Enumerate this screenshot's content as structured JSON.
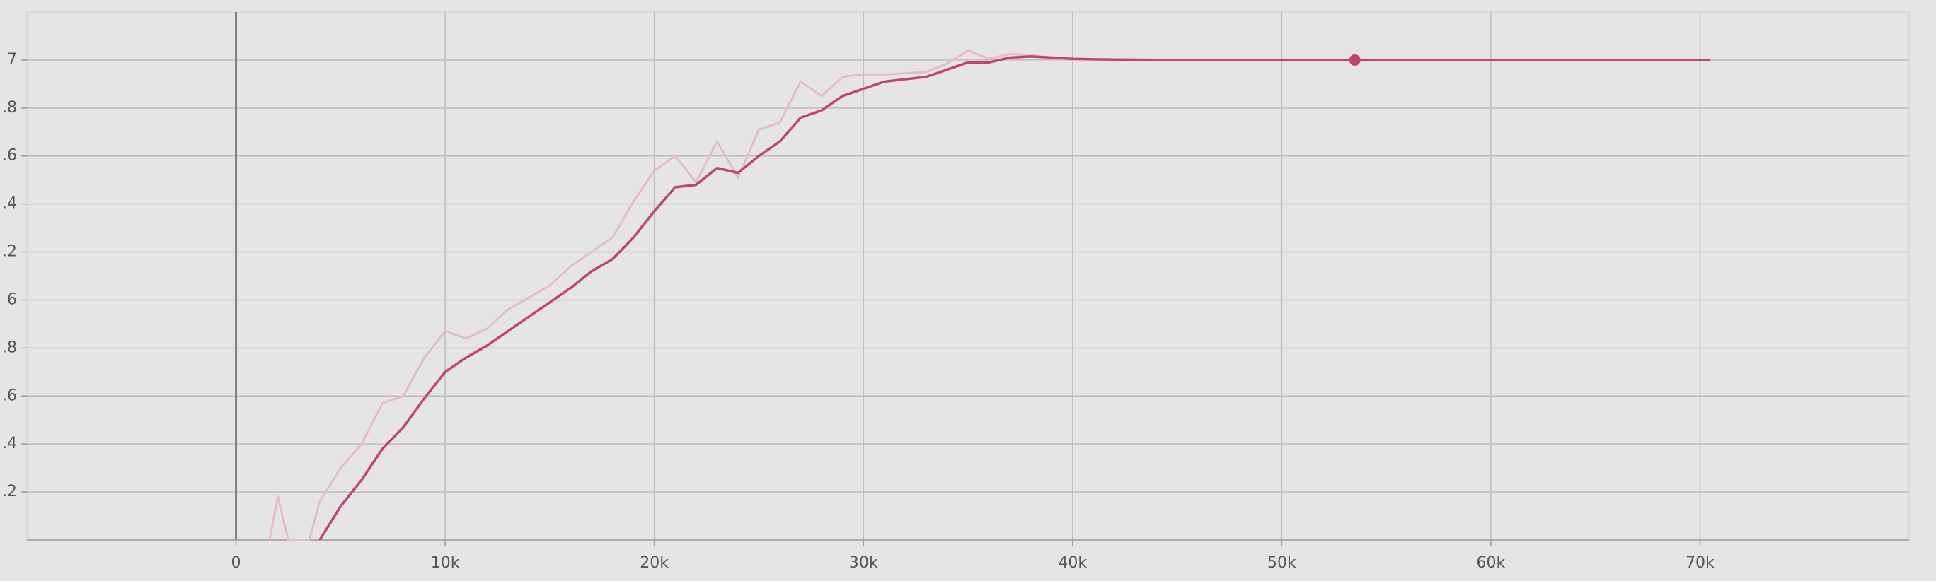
{
  "chart_data": {
    "type": "line",
    "xlim": [
      -10000,
      80000
    ],
    "ylim": [
      5,
      7.2
    ],
    "xticks": [
      0,
      {
        "value": 10000,
        "label": "10k"
      },
      {
        "value": 20000,
        "label": "20k"
      },
      {
        "value": 30000,
        "label": "30k"
      },
      {
        "value": 40000,
        "label": "40k"
      },
      {
        "value": 50000,
        "label": "50k"
      },
      {
        "value": 60000,
        "label": "60k"
      },
      {
        "value": 70000,
        "label": "70k"
      }
    ],
    "yticks": [
      {
        "value": 5.2,
        "label": ".2"
      },
      {
        "value": 5.4,
        "label": ".4"
      },
      {
        "value": 5.6,
        "label": ".6"
      },
      {
        "value": 5.8,
        "label": ".8"
      },
      6,
      {
        "value": 6.2,
        "label": ".2"
      },
      {
        "value": 6.4,
        "label": ".4"
      },
      {
        "value": 6.6,
        "label": ".6"
      },
      {
        "value": 6.8,
        "label": ".8"
      },
      7
    ],
    "grid": true,
    "series": [
      {
        "color": "#e2bccb",
        "x": [
          1600,
          2000,
          2500,
          3500,
          4000,
          5000,
          6000,
          7000,
          8000,
          9000,
          10000,
          11000,
          12000,
          13000,
          14000,
          15000,
          16000,
          17000,
          18000,
          19000,
          20000,
          21000,
          22000,
          23000,
          24000,
          25000,
          26000,
          27000,
          28000,
          29000,
          30000,
          31000,
          32000,
          33000,
          34000,
          35000,
          36000,
          37000,
          38000,
          39000,
          40000
        ],
        "values": [
          5.0,
          5.18,
          5.0,
          5.0,
          5.16,
          5.3,
          5.4,
          5.57,
          5.6,
          5.76,
          5.87,
          5.84,
          5.88,
          5.96,
          6.01,
          6.06,
          6.14,
          6.2,
          6.26,
          6.41,
          6.54,
          6.6,
          6.49,
          6.66,
          6.51,
          6.71,
          6.74,
          6.91,
          6.85,
          6.93,
          6.94,
          6.94,
          6.945,
          6.95,
          6.985,
          7.04,
          7.005,
          7.025,
          7.02,
          7.01,
          7.0
        ]
      },
      {
        "color": "#c2446e",
        "x": [
          4000,
          5000,
          6000,
          7000,
          8000,
          9000,
          10000,
          11000,
          12000,
          13000,
          14000,
          15000,
          16000,
          17000,
          18000,
          19000,
          20000,
          21000,
          22000,
          23000,
          24000,
          25000,
          26000,
          27000,
          28000,
          29000,
          30000,
          31000,
          32000,
          33000,
          34000,
          35000,
          36000,
          37000,
          38000,
          39000,
          40000,
          41000,
          42000,
          45000,
          50000,
          55000,
          60000,
          65000,
          70000,
          70500
        ],
        "values": [
          5.0,
          5.14,
          5.25,
          5.38,
          5.47,
          5.59,
          5.7,
          5.76,
          5.81,
          5.87,
          5.93,
          5.99,
          6.05,
          6.12,
          6.17,
          6.26,
          6.37,
          6.47,
          6.48,
          6.55,
          6.53,
          6.6,
          6.66,
          6.76,
          6.79,
          6.85,
          6.88,
          6.91,
          6.92,
          6.93,
          6.96,
          6.99,
          6.99,
          7.01,
          7.015,
          7.01,
          7.005,
          7.003,
          7.002,
          7.0,
          7.0,
          7.0,
          7.0,
          7.0,
          7.0,
          7.0
        ]
      }
    ],
    "highlight": {
      "x": 53500,
      "y": 7.0,
      "color": "#c2446e"
    }
  }
}
